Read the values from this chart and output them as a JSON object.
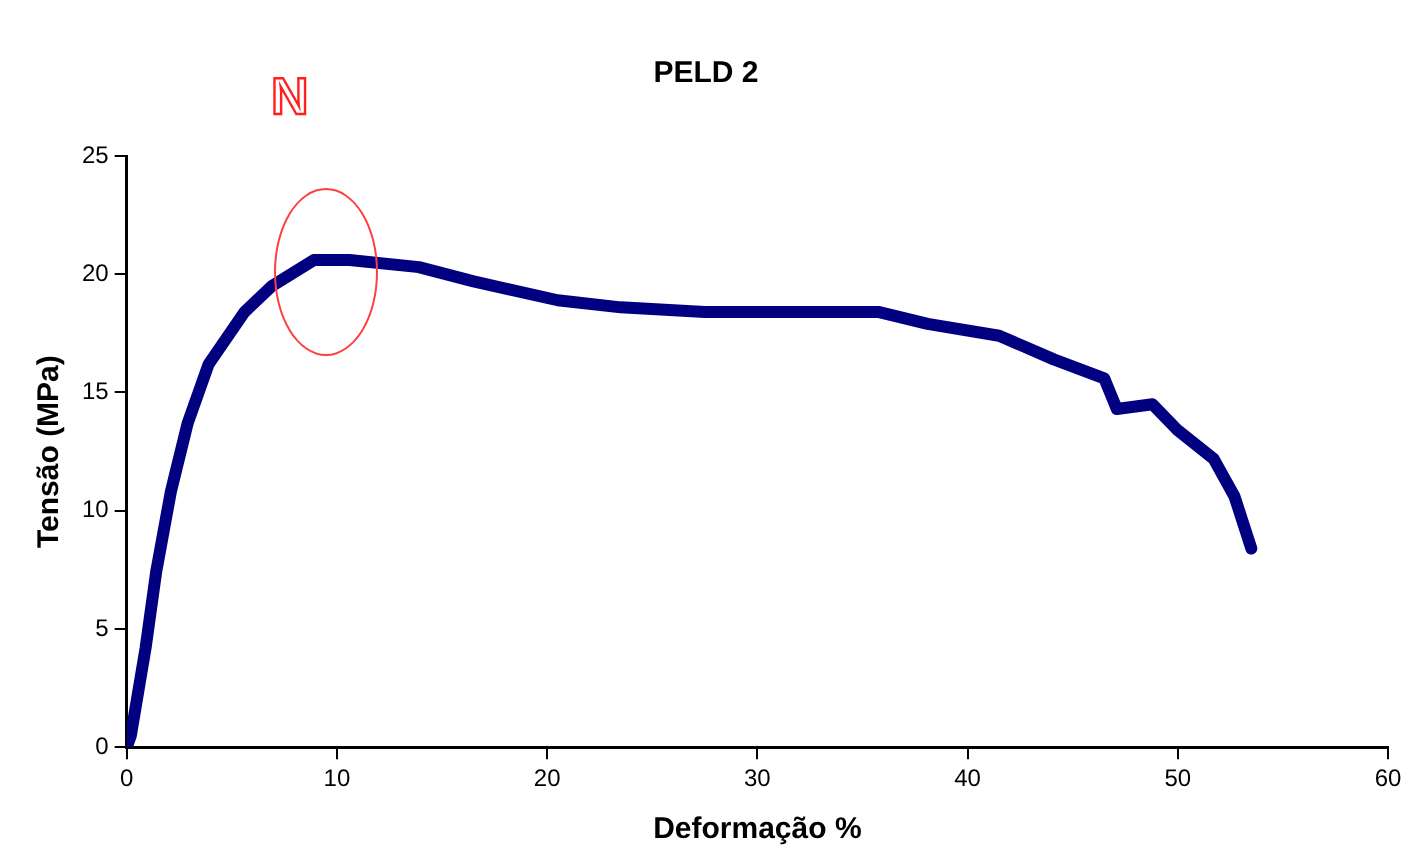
{
  "chart_data": {
    "type": "line",
    "title": "PELD 2",
    "xlabel": "Deformação %",
    "ylabel": "Tensão (MPa)",
    "annotations": [
      "N"
    ],
    "series": [
      {
        "color": "#000080",
        "x": [
          0,
          0.2,
          0.9,
          1.4,
          2.1,
          2.9,
          3.9,
          5.6,
          6.9,
          8.9,
          10.6,
          13.9,
          16.5,
          20.5,
          23.5,
          27.5,
          35.8,
          38.1,
          41.5,
          44.1,
          46.5,
          47.1,
          48.8,
          50.0,
          51.7,
          52.7,
          53.5
        ],
        "values": [
          0,
          0.5,
          4.2,
          7.4,
          10.8,
          13.7,
          16.2,
          18.4,
          19.5,
          20.6,
          20.6,
          20.3,
          19.7,
          18.9,
          18.6,
          18.4,
          18.4,
          17.9,
          17.4,
          16.4,
          15.6,
          14.3,
          14.5,
          13.4,
          12.2,
          10.6,
          8.4
        ]
      }
    ],
    "xlim": [
      0,
      60
    ],
    "xticks": [
      0,
      10,
      20,
      30,
      40,
      50,
      60
    ],
    "ylim": [
      0,
      25
    ],
    "yticks": [
      0,
      5,
      10,
      15,
      20,
      25
    ],
    "grid": false,
    "legend": false,
    "marker": "none",
    "line_style": "solid"
  }
}
